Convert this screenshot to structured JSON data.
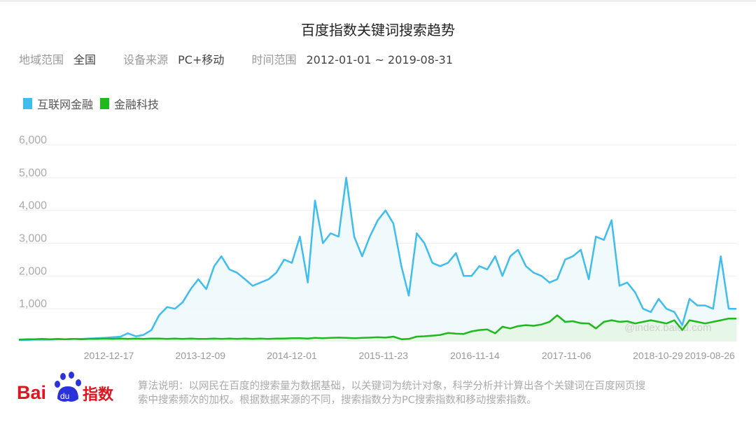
{
  "header": {
    "title": "百度指数关键词搜索趋势"
  },
  "filters": [
    {
      "label": "地域范围",
      "value": "全国"
    },
    {
      "label": "设备来源",
      "value": "PC+移动"
    },
    {
      "label": "时间范围",
      "value": "2012-01-01 ~ 2019-08-31"
    }
  ],
  "colors": {
    "series1": "#3ebdee",
    "series2": "#1db91d",
    "fill1": "#eef8fc",
    "fill2": "#e4f6e6",
    "grid": "#eeeeee",
    "axis_text": "#aaaaaa"
  },
  "chart_data": {
    "type": "area",
    "title": "",
    "xlabel": "",
    "ylabel": "",
    "ylim": [
      0,
      6000
    ],
    "xlim": [
      "2012-01-01",
      "2019-08-31"
    ],
    "y_ticks": [
      "1,000",
      "2,000",
      "3,000",
      "4,000",
      "5,000",
      "6,000"
    ],
    "x_ticks": [
      "2012-12-17",
      "2013-12-09",
      "2014-12-01",
      "2015-11-23",
      "2016-11-14",
      "2017-11-06",
      "2018-10-29",
      "2019-08-26"
    ],
    "grid": true,
    "legend": "top-left",
    "watermark": "@index.baidu.com",
    "x": [
      "2012-01",
      "2012-02",
      "2012-03",
      "2012-04",
      "2012-05",
      "2012-06",
      "2012-07",
      "2012-08",
      "2012-09",
      "2012-10",
      "2012-11",
      "2012-12",
      "2013-01",
      "2013-02",
      "2013-03",
      "2013-04",
      "2013-05",
      "2013-06",
      "2013-07",
      "2013-08",
      "2013-09",
      "2013-10",
      "2013-11",
      "2013-12",
      "2014-01",
      "2014-02",
      "2014-03",
      "2014-04",
      "2014-05",
      "2014-06",
      "2014-07",
      "2014-08",
      "2014-09",
      "2014-10",
      "2014-11",
      "2014-12",
      "2015-01",
      "2015-02",
      "2015-03",
      "2015-04",
      "2015-05",
      "2015-06",
      "2015-07",
      "2015-08",
      "2015-09",
      "2015-10",
      "2015-11",
      "2015-12",
      "2016-01",
      "2016-02",
      "2016-03",
      "2016-04",
      "2016-05",
      "2016-06",
      "2016-07",
      "2016-08",
      "2016-09",
      "2016-10",
      "2016-11",
      "2016-12",
      "2017-01",
      "2017-02",
      "2017-03",
      "2017-04",
      "2017-05",
      "2017-06",
      "2017-07",
      "2017-08",
      "2017-09",
      "2017-10",
      "2017-11",
      "2017-12",
      "2018-01",
      "2018-02",
      "2018-03",
      "2018-04",
      "2018-05",
      "2018-06",
      "2018-07",
      "2018-08",
      "2018-09",
      "2018-10",
      "2018-11",
      "2018-12",
      "2019-01",
      "2019-02",
      "2019-03",
      "2019-04",
      "2019-05",
      "2019-06",
      "2019-07",
      "2019-08"
    ],
    "series": [
      {
        "name": "互联网金融",
        "values": [
          50,
          50,
          60,
          60,
          60,
          70,
          70,
          80,
          80,
          90,
          100,
          110,
          130,
          150,
          250,
          160,
          200,
          350,
          800,
          1050,
          1000,
          1200,
          1600,
          1900,
          1600,
          2300,
          2600,
          2200,
          2100,
          1900,
          1700,
          1800,
          1900,
          2100,
          2500,
          2400,
          3200,
          1800,
          4300,
          3000,
          3300,
          3200,
          5000,
          3200,
          2600,
          3200,
          3700,
          4000,
          3600,
          2300,
          1400,
          3300,
          3000,
          2400,
          2300,
          2400,
          2700,
          2000,
          2000,
          2300,
          2200,
          2600,
          2000,
          2600,
          2800,
          2300,
          2100,
          2000,
          1800,
          1900,
          2500,
          2600,
          2800,
          1900,
          3200,
          3100,
          3700,
          1700,
          1800,
          1500,
          1000,
          900,
          1300,
          1000,
          900,
          500,
          1300,
          1100,
          1100,
          1000,
          2600,
          1000
        ]
      },
      {
        "name": "金融科技",
        "values": [
          60,
          70,
          70,
          80,
          70,
          80,
          70,
          80,
          70,
          80,
          80,
          90,
          80,
          90,
          80,
          90,
          80,
          90,
          90,
          80,
          90,
          80,
          90,
          80,
          80,
          90,
          80,
          90,
          80,
          90,
          80,
          90,
          80,
          90,
          90,
          100,
          100,
          90,
          110,
          100,
          110,
          120,
          110,
          100,
          110,
          120,
          130,
          120,
          150,
          70,
          80,
          150,
          160,
          180,
          200,
          260,
          240,
          230,
          310,
          350,
          370,
          250,
          450,
          400,
          470,
          500,
          480,
          520,
          600,
          800,
          600,
          620,
          560,
          550,
          400,
          600,
          650,
          600,
          620,
          550,
          600,
          650,
          600,
          550,
          650,
          350,
          650,
          600,
          550,
          600,
          650,
          700
        ]
      }
    ]
  },
  "footer": {
    "logo_text": "Bai du 指数",
    "note_line1": "算法说明：以网民在百度的搜索量为数据基础，以关键词为统计对象，科学分析并计算出各个关键词在百度网页搜",
    "note_line2": "索中搜索频次的加权。根据数据来源的不同，搜索指数分为PC搜索指数和移动搜索指数。"
  }
}
